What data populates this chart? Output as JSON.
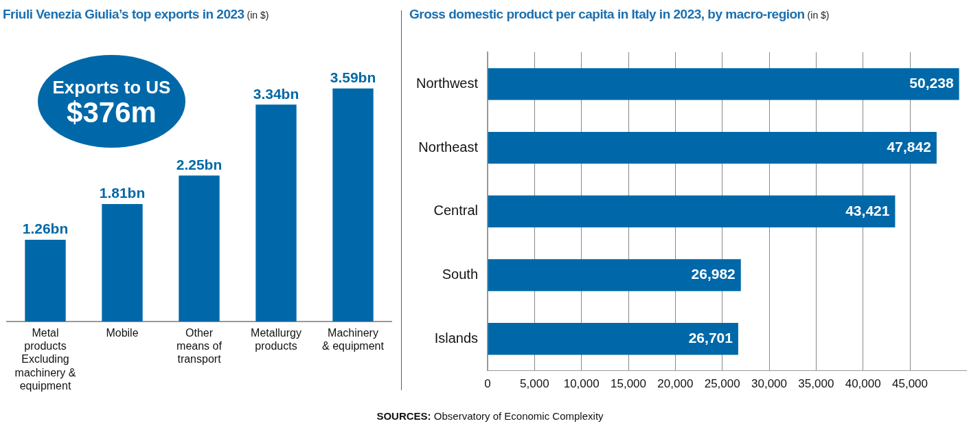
{
  "chart_data": [
    {
      "type": "bar",
      "title": "Friuli Venezia Giulia’s top exports in 2023",
      "subtitle": "(in $)",
      "categories": [
        "Metal\nproducts\nExcluding\nmachinery &\nequipment",
        "Mobile",
        "Other\nmeans of\ntransport",
        "Metallurgy\nproducts",
        "Machinery\n& equipment"
      ],
      "values": [
        1.26,
        1.81,
        2.25,
        3.34,
        3.59
      ],
      "color": "#0068a8",
      "value_labels": [
        "1.26bn",
        "1.81bn",
        "2.25bn",
        "3.34bn",
        "3.59bn"
      ],
      "tick_labels": "x",
      "grid": false,
      "legend": false,
      "annotations": [
        "Exports to US",
        "$376m"
      ]
    },
    {
      "type": "bar",
      "orientation": "horizontal",
      "title": "Gross domestic product per capita in Italy in 2023, by macro-region",
      "subtitle": "(in $)",
      "categories": [
        "Northwest",
        "Northeast",
        "Central",
        "South",
        "Islands"
      ],
      "values": [
        50238,
        47842,
        43421,
        26982,
        26701
      ],
      "color": "#0068a8",
      "xlim": [
        0,
        51000
      ],
      "xticks": [
        {
          "value": 0,
          "label": "0"
        },
        {
          "value": 5000,
          "label": "5,000"
        },
        {
          "value": 10000,
          "label": "10,000"
        },
        {
          "value": 15000,
          "label": "15,000"
        },
        {
          "value": 20000,
          "label": "20,000"
        },
        {
          "value": 25000,
          "label": "25,000"
        },
        {
          "value": 30000,
          "label": "30,000"
        },
        {
          "value": 35000,
          "label": "35,000"
        },
        {
          "value": 40000,
          "label": "40,000"
        },
        {
          "value": 45000,
          "label": "45,000"
        }
      ],
      "value_labels": [
        "50,238",
        "47,842",
        "43,421",
        "26,982",
        "26,701"
      ],
      "grid": "x",
      "legend": false,
      "annotations": [
        "SOURCES: Observatory of Economic Complexity"
      ]
    }
  ]
}
